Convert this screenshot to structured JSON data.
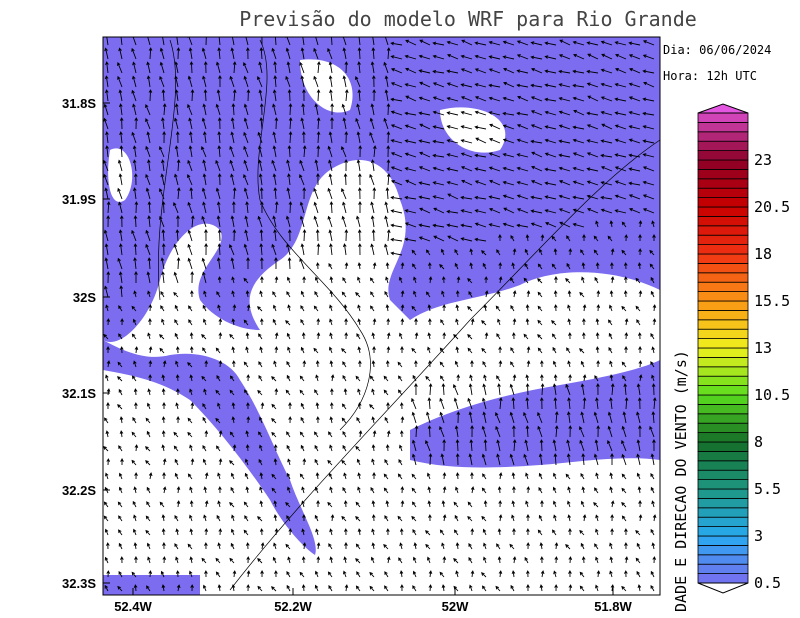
{
  "title": "Previsão do modelo WRF para Rio Grande",
  "info": {
    "date": "Dia: 06/06/2024",
    "hour": "Hora: 12h UTC"
  },
  "lat_labels": [
    "31.8S",
    "31.9S",
    "32S",
    "32.1S",
    "32.2S",
    "32.3S"
  ],
  "lon_labels": [
    "52.4W",
    "52.2W",
    "52W",
    "51.8W"
  ],
  "colorbar": {
    "title": "DADE E DIRECAO DO VENTO (m/s)",
    "labels": [
      "0.5",
      "3",
      "5.5",
      "8",
      "10.5",
      "13",
      "15.5",
      "18",
      "20.5",
      "23"
    ]
  }
}
